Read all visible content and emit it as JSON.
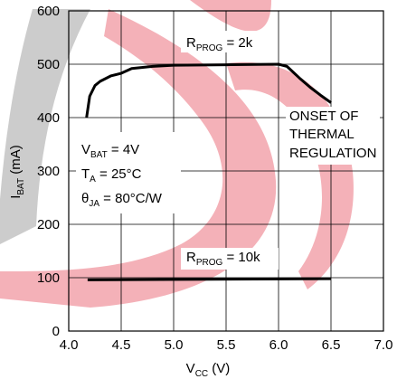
{
  "chart_data": {
    "type": "line",
    "title": "",
    "xlabel": {
      "main": "V",
      "sub": "CC",
      "rest": " (V)"
    },
    "ylabel": {
      "main": "I",
      "sub": "BAT",
      "rest": " (mA)"
    },
    "xlim": [
      4.0,
      7.0
    ],
    "ylim": [
      0,
      600
    ],
    "x_ticks": [
      "4.0",
      "4.5",
      "5.0",
      "5.5",
      "6.0",
      "6.5",
      "7.0"
    ],
    "y_ticks": [
      "0",
      "100",
      "200",
      "300",
      "400",
      "500",
      "600"
    ],
    "grid": true,
    "series": [
      {
        "name": "RPROG = 2k",
        "x": [
          4.17,
          4.2,
          4.25,
          4.3,
          4.4,
          4.5,
          4.6,
          4.8,
          5.0,
          5.5,
          6.0,
          6.08,
          6.2,
          6.3,
          6.4,
          6.5
        ],
        "y": [
          400,
          440,
          460,
          468,
          478,
          483,
          492,
          496,
          498,
          499,
          500,
          496,
          474,
          457,
          442,
          428
        ]
      },
      {
        "name": "RPROG = 10k",
        "x": [
          4.18,
          6.5
        ],
        "y": [
          96,
          98
        ]
      }
    ],
    "annotations": {
      "rprog_2k": {
        "main": "R",
        "sub": "PROG",
        "rest": " = 2k"
      },
      "rprog_10k": {
        "main": "R",
        "sub": "PROG",
        "rest": " = 10k"
      },
      "onset_lines": [
        "ONSET OF",
        "THERMAL",
        "REGULATION"
      ],
      "cond_vbat": {
        "main": "V",
        "sub": "BAT",
        "rest": " = 4V"
      },
      "cond_ta": {
        "main": "T",
        "sub": "A",
        "rest": " = 25°C"
      },
      "cond_theta": {
        "main": "θ",
        "sub": "JA",
        "rest": " = 80°C/W"
      }
    },
    "watermark_colors": {
      "gray": "#cccccc",
      "red": "#f2a3ab"
    }
  }
}
